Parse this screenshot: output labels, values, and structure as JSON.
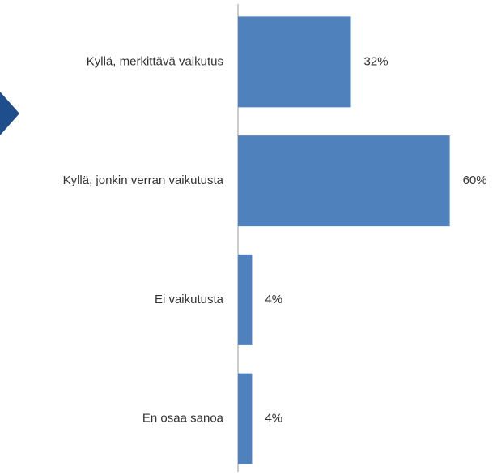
{
  "chart_data": {
    "type": "bar",
    "orientation": "horizontal",
    "categories": [
      "Kyllä, merkittävä vaikutus",
      "Kyllä, jonkin verran vaikutusta",
      "Ei vaikutusta",
      "En osaa sanoa"
    ],
    "values": [
      32,
      60,
      4,
      4
    ],
    "value_labels": [
      "32%",
      "60%",
      "4%",
      "4%"
    ],
    "color": "#4f81bd",
    "xlim": [
      0,
      100
    ]
  }
}
